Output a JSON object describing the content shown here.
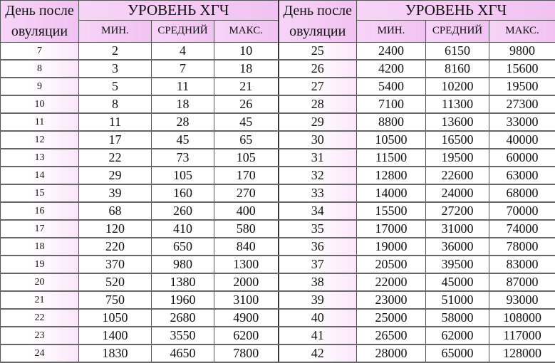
{
  "header": {
    "day_label_1": "День после",
    "day_label_2": "овуляции",
    "group_title": "УРОВЕНЬ ХГЧ",
    "columns": [
      "МИН.",
      "СРЕДНИЙ",
      "МАКС."
    ]
  },
  "colors": {
    "header_bg": "#f3c8f3",
    "day_cell_tint": "#fbe6fb"
  },
  "left_rows": [
    [
      "7",
      "2",
      "4",
      "10"
    ],
    [
      "8",
      "3",
      "7",
      "18"
    ],
    [
      "9",
      "5",
      "11",
      "21"
    ],
    [
      "10",
      "8",
      "18",
      "26"
    ],
    [
      "11",
      "11",
      "28",
      "45"
    ],
    [
      "12",
      "17",
      "45",
      "65"
    ],
    [
      "13",
      "22",
      "73",
      "105"
    ],
    [
      "14",
      "29",
      "105",
      "170"
    ],
    [
      "15",
      "39",
      "160",
      "270"
    ],
    [
      "16",
      "68",
      "260",
      "400"
    ],
    [
      "17",
      "120",
      "410",
      "580"
    ],
    [
      "18",
      "220",
      "650",
      "840"
    ],
    [
      "19",
      "370",
      "980",
      "1300"
    ],
    [
      "20",
      "520",
      "1380",
      "2000"
    ],
    [
      "21",
      "750",
      "1960",
      "3100"
    ],
    [
      "22",
      "1050",
      "2680",
      "4900"
    ],
    [
      "23",
      "1400",
      "3550",
      "6200"
    ],
    [
      "24",
      "1830",
      "4650",
      "7800"
    ]
  ],
  "right_rows": [
    [
      "25",
      "2400",
      "6150",
      "9800"
    ],
    [
      "26",
      "4200",
      "8160",
      "15600"
    ],
    [
      "27",
      "5400",
      "10200",
      "19500"
    ],
    [
      "28",
      "7100",
      "11300",
      "27300"
    ],
    [
      "29",
      "8800",
      "13600",
      "33000"
    ],
    [
      "30",
      "10500",
      "16500",
      "40000"
    ],
    [
      "31",
      "11500",
      "19500",
      "60000"
    ],
    [
      "32",
      "12800",
      "22600",
      "63000"
    ],
    [
      "33",
      "14000",
      "24000",
      "68000"
    ],
    [
      "34",
      "15500",
      "27200",
      "70000"
    ],
    [
      "35",
      "17000",
      "31000",
      "74000"
    ],
    [
      "36",
      "19000",
      "36000",
      "78000"
    ],
    [
      "37",
      "20500",
      "39500",
      "83000"
    ],
    [
      "38",
      "22000",
      "45000",
      "87000"
    ],
    [
      "39",
      "23000",
      "51000",
      "93000"
    ],
    [
      "40",
      "25000",
      "58000",
      "108000"
    ],
    [
      "41",
      "26500",
      "62000",
      "117000"
    ],
    [
      "42",
      "28000",
      "65000",
      "128000"
    ]
  ]
}
